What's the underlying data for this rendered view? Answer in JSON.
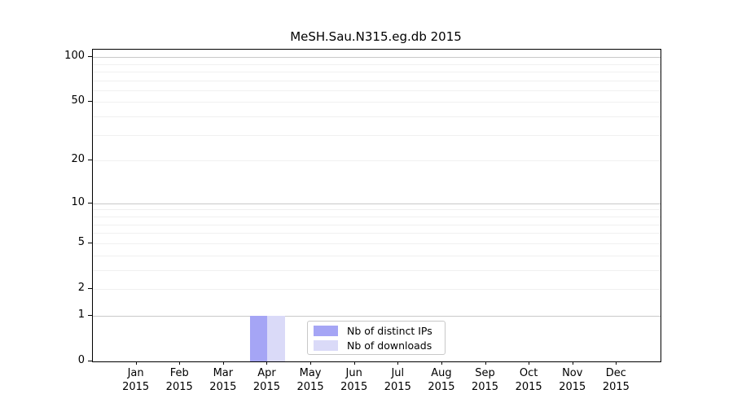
{
  "chart_data": {
    "type": "bar",
    "title": "MeSH.Sau.N315.eg.db 2015",
    "categories": [
      "Jan",
      "Feb",
      "Mar",
      "Apr",
      "May",
      "Jun",
      "Jul",
      "Aug",
      "Sep",
      "Oct",
      "Nov",
      "Dec"
    ],
    "category_year": "2015",
    "series": [
      {
        "name": "Nb of distinct IPs",
        "color": "#a5a5f5",
        "values": [
          0,
          0,
          0,
          1,
          0,
          0,
          0,
          0,
          0,
          0,
          0,
          0
        ]
      },
      {
        "name": "Nb of downloads",
        "color": "#dadaf8",
        "values": [
          0,
          0,
          0,
          1,
          0,
          0,
          0,
          0,
          0,
          0,
          0,
          0
        ]
      }
    ],
    "yscale": "log1p",
    "ylim": [
      0,
      112
    ],
    "y_ticks": [
      0,
      1,
      2,
      5,
      10,
      20,
      50,
      100
    ],
    "y_major_grid": [
      1,
      10,
      100
    ],
    "y_minor_grid": [
      3,
      4,
      6,
      7,
      8,
      9,
      30,
      40,
      60,
      70,
      80,
      90
    ],
    "grid": true,
    "legend_position": "inside-bottom-center"
  }
}
